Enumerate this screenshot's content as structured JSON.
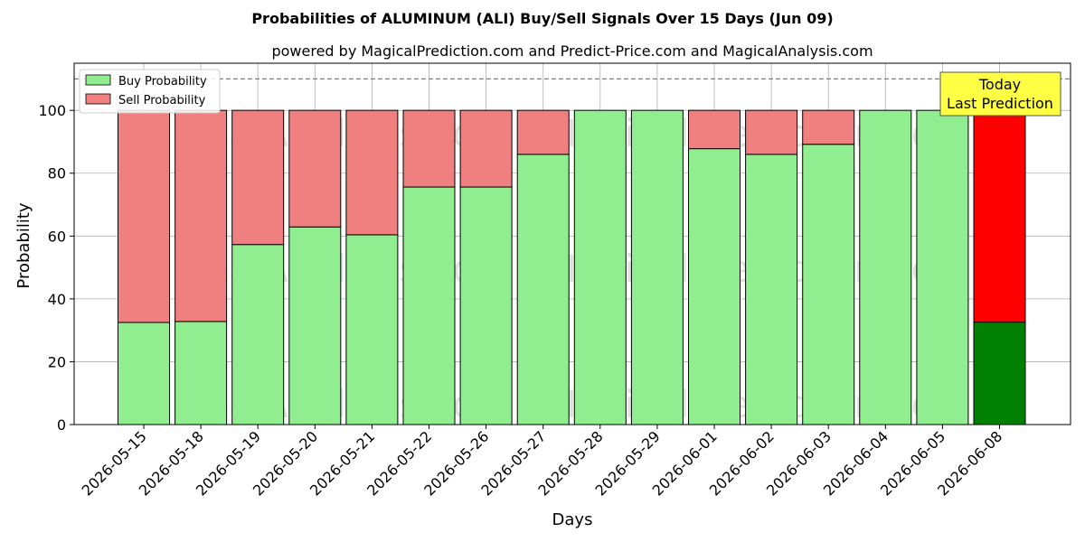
{
  "title": "Probabilities of ALUMINUM (ALI) Buy/Sell Signals Over 15 Days (Jun 09)",
  "subtitle": "powered by MagicalPrediction.com and Predict-Price.com and MagicalAnalysis.com",
  "annotation": {
    "line1": "Today",
    "line2": "Last Prediction"
  },
  "watermarks": [
    "MagicalAnalysis.com",
    "MagicalPrediction.com"
  ],
  "colors": {
    "buy": "#90ee90",
    "sell": "#f08080",
    "buy_today": "#008000",
    "sell_today": "#ff0000",
    "annotation_bg": "#ffff44"
  },
  "chart_data": {
    "type": "bar",
    "stacked": true,
    "xlabel": "Days",
    "ylabel": "Probability",
    "ylim": [
      0,
      115
    ],
    "yticks": [
      0,
      20,
      40,
      60,
      80,
      100
    ],
    "reference_line": 110,
    "grid": true,
    "legend_position": "top-left",
    "categories": [
      "2026-05-15",
      "2026-05-18",
      "2026-05-19",
      "2026-05-20",
      "2026-05-21",
      "2026-05-22",
      "2026-05-26",
      "2026-05-27",
      "2026-05-28",
      "2026-05-29",
      "2026-06-01",
      "2026-06-02",
      "2026-06-03",
      "2026-06-04",
      "2026-06-05",
      "2026-06-08"
    ],
    "series": [
      {
        "name": "Buy Probability",
        "values": [
          32.5,
          32.8,
          57.3,
          62.9,
          60.4,
          75.6,
          75.6,
          86.0,
          100,
          100,
          87.8,
          86.0,
          89.2,
          100,
          100,
          32.6
        ]
      },
      {
        "name": "Sell Probability",
        "values": [
          67.5,
          67.2,
          42.7,
          37.1,
          39.6,
          24.4,
          24.4,
          14.0,
          0,
          0,
          12.2,
          14.0,
          10.8,
          0,
          0,
          67.4
        ]
      }
    ]
  }
}
